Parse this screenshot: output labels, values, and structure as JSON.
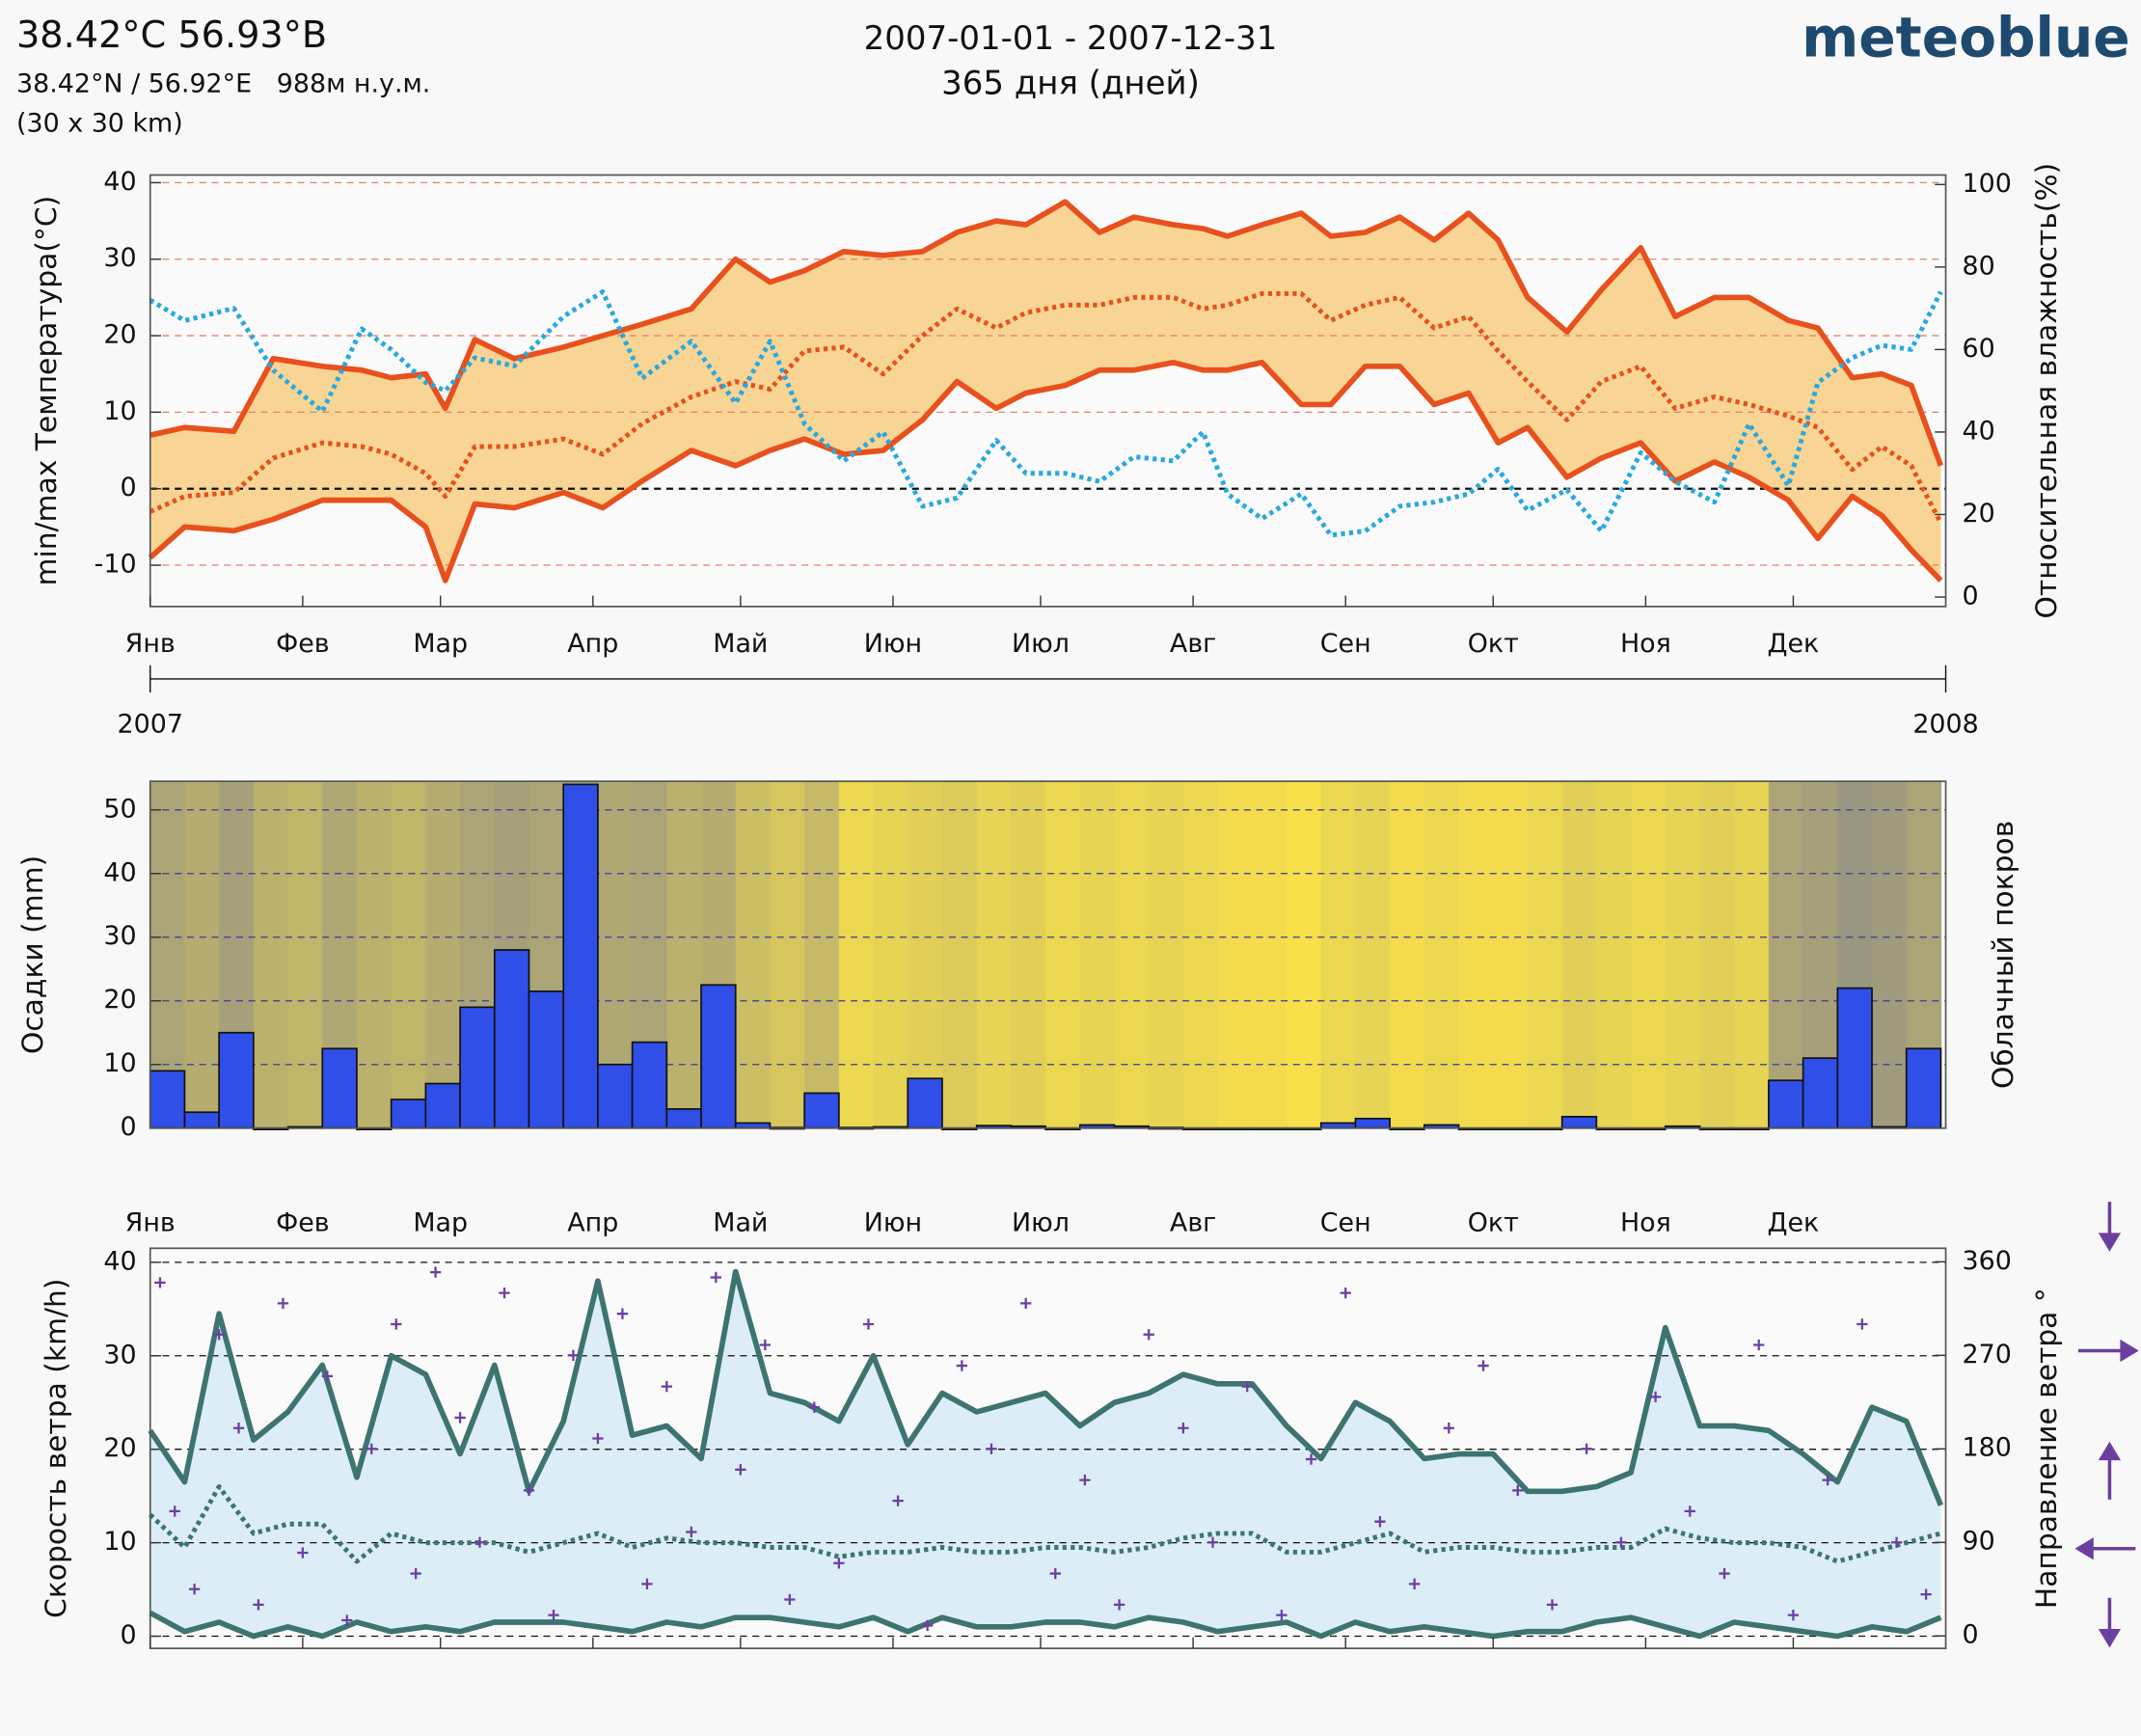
{
  "header": {
    "title": "38.42°C 56.93°В",
    "coords": "38.42°N / 56.92°E   988м н.у.м.",
    "grid": "(30 x 30 km)",
    "period": "2007-01-01 - 2007-12-31",
    "days": "365 дня (дней)",
    "brand": "meteoblue"
  },
  "chart_data": [
    {
      "type": "line",
      "ylabel": "min/max Температура(°C)",
      "y2label": "Относительная влажность(%)",
      "label_color": "#e8501e",
      "label2_color": "#29a8e0",
      "grid_color": "#e8806a",
      "fill_color": "#f8d594",
      "x": [
        0,
        7,
        17,
        25,
        35,
        43,
        49,
        56,
        60,
        66,
        74,
        84,
        92,
        100,
        110,
        119,
        126,
        133,
        141,
        149,
        157,
        164,
        172,
        178,
        186,
        193,
        200,
        208,
        214,
        219,
        226,
        234,
        240,
        247,
        254,
        261,
        268,
        274,
        280,
        288,
        295,
        303,
        310,
        318,
        325,
        333,
        339,
        346,
        352,
        358,
        364
      ],
      "xlim": [
        0,
        365
      ],
      "xticks": [
        {
          "value": 0,
          "label": "Янв"
        },
        {
          "value": 31,
          "label": "Фев"
        },
        {
          "value": 59,
          "label": "Мар"
        },
        {
          "value": 90,
          "label": "Апр"
        },
        {
          "value": 120,
          "label": "Май"
        },
        {
          "value": 151,
          "label": "Июн"
        },
        {
          "value": 181,
          "label": "Июл"
        },
        {
          "value": 212,
          "label": "Авг"
        },
        {
          "value": 243,
          "label": "Сен"
        },
        {
          "value": 273,
          "label": "Окт"
        },
        {
          "value": 304,
          "label": "Ноя"
        },
        {
          "value": 334,
          "label": "Дек"
        }
      ],
      "x2ticks": [
        {
          "value": 0,
          "label": "2007"
        },
        {
          "value": 365,
          "label": "2008"
        }
      ],
      "ylim": [
        -15.4,
        41
      ],
      "yticks": [
        -10,
        0,
        10,
        20,
        30,
        40
      ],
      "y2lim": [
        -2.3,
        102.3
      ],
      "y2ticks": [
        0,
        20,
        40,
        60,
        80,
        100
      ],
      "series": [
        {
          "color": "#e8501e",
          "style": "solid",
          "values": [
            7,
            8,
            7.5,
            17,
            16,
            15.5,
            14.5,
            15,
            10.5,
            19.5,
            17,
            18.5,
            20,
            21.5,
            23.5,
            30,
            27,
            28.5,
            31,
            30.5,
            31,
            33.5,
            35,
            34.5,
            37.5,
            33.5,
            35.5,
            34.5,
            34,
            33,
            34.5,
            36,
            33,
            33.5,
            35.5,
            32.5,
            36,
            32.5,
            25,
            20.5,
            26,
            31.5,
            22.5,
            25,
            25,
            22,
            21,
            14.5,
            15,
            13.5,
            3
          ]
        },
        {
          "color": "#e8501e",
          "style": "dotted",
          "values": [
            -3,
            -1,
            -0.5,
            4,
            6,
            5.5,
            4.5,
            2,
            -1,
            5.5,
            5.5,
            6.5,
            4.5,
            8.5,
            12,
            14,
            13,
            18,
            18.5,
            15,
            20,
            23.5,
            21,
            23,
            24,
            24,
            25,
            25,
            23.5,
            24,
            25.5,
            25.5,
            22,
            24,
            25,
            21,
            22.5,
            18,
            14,
            9,
            14,
            16,
            10.5,
            12,
            11,
            9.5,
            8,
            2.5,
            5.5,
            3,
            -4.5
          ]
        },
        {
          "color": "#e8501e",
          "style": "solid",
          "values": [
            -9,
            -5,
            -5.5,
            -4,
            -1.5,
            -1.5,
            -1.5,
            -5,
            -12,
            -2,
            -2.5,
            -0.5,
            -2.5,
            1,
            5,
            3,
            5,
            6.5,
            4.5,
            5,
            9,
            14,
            10.5,
            12.5,
            13.5,
            15.5,
            15.5,
            16.5,
            15.5,
            15.5,
            16.5,
            11,
            11,
            16,
            16,
            11,
            12.5,
            6,
            8,
            1.5,
            4,
            6,
            1,
            3.5,
            1.5,
            -1.5,
            -6.5,
            -1,
            -3.5,
            -8,
            -12
          ]
        },
        {
          "color": "#29a8e0",
          "style": "dotted",
          "axis": "y2",
          "values": [
            72,
            67,
            70,
            55,
            45,
            65,
            60,
            52,
            50,
            58,
            56,
            68,
            74,
            53,
            62,
            47,
            62,
            42,
            33,
            40,
            22,
            24,
            38,
            30,
            30,
            28,
            34,
            33,
            40,
            25,
            19,
            25,
            15,
            16,
            22,
            23,
            25,
            31,
            21,
            26,
            16,
            35,
            28,
            23,
            42,
            27,
            52,
            58,
            61,
            60,
            74
          ]
        }
      ]
    },
    {
      "type": "histogram",
      "ylabel": "Осадки (mm)",
      "y2label": "Облачный покров",
      "label_color": "#1a1aa6",
      "label2_color": "#777777",
      "grid_color": "#3a3a9a",
      "color": "#2f4fe8",
      "cloud_colors": [
        "#f7e04a",
        "#8a8a8a"
      ],
      "bins": [
        0,
        7,
        14,
        21,
        28,
        35,
        42,
        49,
        56,
        63,
        70,
        77,
        84,
        91,
        98,
        105,
        112,
        119,
        126,
        133,
        140,
        147,
        154,
        161,
        168,
        175,
        182,
        189,
        196,
        203,
        210,
        217,
        224,
        231,
        238,
        245,
        252,
        259,
        266,
        273,
        280,
        287,
        294,
        301,
        308,
        315,
        322,
        329,
        336,
        343,
        350,
        357,
        364
      ],
      "values": [
        9,
        2.5,
        15,
        0,
        0.2,
        12.5,
        0,
        4.5,
        7,
        19,
        28,
        21.5,
        54,
        10,
        13.5,
        3,
        22.5,
        0.8,
        0.1,
        5.5,
        0.1,
        0.2,
        7.8,
        0,
        0.4,
        0.3,
        0,
        0.5,
        0.3,
        0.1,
        0,
        0,
        0,
        0,
        0.8,
        1.5,
        0,
        0.5,
        0,
        0,
        0,
        1.8,
        0,
        0,
        0.3,
        0,
        0,
        7.5,
        11,
        22,
        0.2,
        12.5
      ],
      "cloud_cover": [
        70,
        60,
        75,
        55,
        50,
        65,
        55,
        50,
        60,
        70,
        75,
        70,
        80,
        65,
        70,
        55,
        60,
        40,
        30,
        45,
        10,
        15,
        20,
        25,
        15,
        20,
        10,
        15,
        10,
        15,
        10,
        5,
        5,
        0,
        10,
        15,
        5,
        10,
        5,
        5,
        10,
        20,
        15,
        10,
        15,
        20,
        15,
        70,
        75,
        85,
        80,
        70
      ],
      "xlim": [
        0,
        365
      ],
      "ylim": [
        0,
        54.5
      ],
      "yticks": [
        0,
        10,
        20,
        30,
        40,
        50
      ]
    },
    {
      "type": "line",
      "ylabel": "Скорость ветра (km/h)",
      "y2label": "Направление ветра °",
      "label_color": "#3d7470",
      "label2_color": "#6b3fa0",
      "grid_color": "#111111",
      "fill_color": "#dcedf8",
      "x": [
        0,
        7,
        14,
        21,
        28,
        35,
        42,
        49,
        56,
        63,
        70,
        77,
        84,
        91,
        98,
        105,
        112,
        119,
        126,
        133,
        140,
        147,
        154,
        161,
        168,
        175,
        182,
        189,
        196,
        203,
        210,
        217,
        224,
        231,
        238,
        245,
        252,
        259,
        266,
        273,
        280,
        287,
        294,
        301,
        308,
        315,
        322,
        329,
        336,
        343,
        350,
        357,
        364
      ],
      "xlim": [
        0,
        365
      ],
      "xticks": [
        {
          "value": 0,
          "label": "Янв"
        },
        {
          "value": 31,
          "label": "Фев"
        },
        {
          "value": 59,
          "label": "Мар"
        },
        {
          "value": 90,
          "label": "Апр"
        },
        {
          "value": 120,
          "label": "Май"
        },
        {
          "value": 151,
          "label": "Июн"
        },
        {
          "value": 181,
          "label": "Июл"
        },
        {
          "value": 212,
          "label": "Авг"
        },
        {
          "value": 243,
          "label": "Сен"
        },
        {
          "value": 273,
          "label": "Окт"
        },
        {
          "value": 304,
          "label": "Ноя"
        },
        {
          "value": 334,
          "label": "Дек"
        }
      ],
      "ylim": [
        -1.3,
        41.5
      ],
      "yticks": [
        0,
        10,
        20,
        30,
        40
      ],
      "y2lim": [
        -12,
        373
      ],
      "y2ticks": [
        0,
        90,
        180,
        270,
        360
      ],
      "series": [
        {
          "color": "#3d7470",
          "style": "solid",
          "values": [
            22,
            16.5,
            34.5,
            21,
            24,
            29,
            17,
            30,
            28,
            19.5,
            29,
            15.5,
            23,
            38,
            21.5,
            22.5,
            19,
            39,
            26,
            25,
            23,
            30,
            20.5,
            26,
            24,
            25,
            26,
            22.5,
            25,
            26,
            28,
            27,
            27,
            22.5,
            19,
            25,
            23,
            19,
            19.5,
            19.5,
            15.5,
            15.5,
            16,
            17.5,
            33,
            22.5,
            22.5,
            22,
            19.5,
            16.5,
            24.5,
            23,
            14
          ]
        },
        {
          "color": "#3d7470",
          "style": "dotted",
          "values": [
            13,
            9.5,
            16,
            11,
            12,
            12,
            8,
            11,
            10,
            10,
            10,
            9,
            10,
            11,
            9.5,
            10.5,
            10,
            10,
            9.5,
            9.5,
            8.5,
            9,
            9,
            9.5,
            9,
            9,
            9.5,
            9.5,
            9,
            9.5,
            10.5,
            11,
            11,
            9,
            9,
            10,
            11,
            9,
            9.5,
            9.5,
            9,
            9,
            9.5,
            9.5,
            11.5,
            10.5,
            10,
            10,
            9.5,
            8,
            9,
            10,
            11
          ]
        },
        {
          "color": "#3d7470",
          "style": "solid",
          "values": [
            2.5,
            0.5,
            1.5,
            0,
            1,
            0,
            1.5,
            0.5,
            1,
            0.5,
            1.5,
            1.5,
            1.5,
            1,
            0.5,
            1.5,
            1,
            2,
            2,
            1.5,
            1,
            2,
            0.5,
            2,
            1,
            1,
            1.5,
            1.5,
            1,
            2,
            1.5,
            0.5,
            1,
            1.5,
            0,
            1.5,
            0.5,
            1,
            0.5,
            0,
            0.5,
            0.5,
            1.5,
            2,
            1,
            0,
            1.5,
            1,
            0.5,
            0,
            1,
            0.5,
            2
          ]
        },
        {
          "type": "scatter",
          "axis": "y2",
          "color": "#6b3fa0",
          "marker": "+",
          "x": [
            2,
            5,
            9,
            14,
            18,
            22,
            27,
            31,
            36,
            40,
            45,
            50,
            54,
            58,
            63,
            67,
            72,
            77,
            82,
            86,
            91,
            96,
            101,
            105,
            110,
            115,
            120,
            125,
            130,
            135,
            140,
            146,
            152,
            158,
            165,
            171,
            178,
            184,
            190,
            197,
            203,
            210,
            216,
            223,
            230,
            236,
            243,
            250,
            257,
            264,
            271,
            278,
            285,
            292,
            299,
            306,
            313,
            320,
            327,
            334,
            341,
            348,
            355,
            361
          ],
          "values": [
            340,
            120,
            45,
            290,
            200,
            30,
            320,
            80,
            250,
            15,
            180,
            300,
            60,
            350,
            210,
            90,
            330,
            140,
            20,
            270,
            190,
            310,
            50,
            240,
            100,
            345,
            160,
            280,
            35,
            220,
            70,
            300,
            130,
            10,
            260,
            180,
            320,
            60,
            150,
            30,
            290,
            200,
            90,
            240,
            20,
            170,
            330,
            110,
            50,
            200,
            260,
            140,
            30,
            180,
            90,
            230,
            120,
            60,
            280,
            20,
            150,
            300,
            90,
            40
          ]
        }
      ]
    }
  ]
}
